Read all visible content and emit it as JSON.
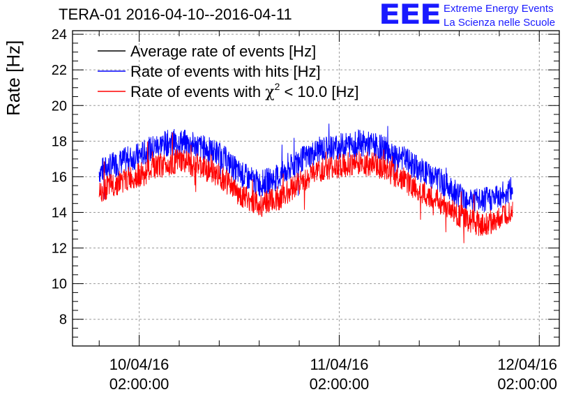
{
  "chart_data": {
    "type": "line",
    "title": "TERA-01 2016-04-10--2016-04-11",
    "ylabel": "Rate [Hz]",
    "xlabel": "",
    "ylim": [
      6.5,
      24.2
    ],
    "xlim_hours": [
      -20,
      126
    ],
    "yticks": [
      8,
      10,
      12,
      14,
      16,
      18,
      20,
      22,
      24
    ],
    "xticks": [
      {
        "hour": 0,
        "date": "10/04/16",
        "time": "02:00:00"
      },
      {
        "hour": 60,
        "date": "11/04/16",
        "time": "02:00:00"
      },
      {
        "hour": 120,
        "date": "12/04/16",
        "time": "02:00:00"
      }
    ],
    "grid": true,
    "legend_position": "top-left",
    "legend": [
      {
        "label": "Average rate of events [Hz]",
        "color": "#000000"
      },
      {
        "label": "Rate of events with hits [Hz]",
        "color": "#0000ff"
      },
      {
        "label_prefix": "Rate of events with ",
        "label_symbol": "χ",
        "label_sup": "2",
        "label_suffix": " < 10.0 [Hz]",
        "color": "#ff0000"
      }
    ],
    "series": [
      {
        "name": "Rate of events with hits [Hz]",
        "color": "#0000ff",
        "noise": 0.75,
        "points": [
          {
            "x": -12,
            "y": 16.3
          },
          {
            "x": -6,
            "y": 16.8
          },
          {
            "x": 0,
            "y": 17.2
          },
          {
            "x": 6,
            "y": 17.8
          },
          {
            "x": 12,
            "y": 18.0
          },
          {
            "x": 18,
            "y": 17.7
          },
          {
            "x": 24,
            "y": 17.3
          },
          {
            "x": 30,
            "y": 16.2
          },
          {
            "x": 36,
            "y": 15.6
          },
          {
            "x": 42,
            "y": 16.0
          },
          {
            "x": 48,
            "y": 16.9
          },
          {
            "x": 54,
            "y": 17.5
          },
          {
            "x": 60,
            "y": 17.7
          },
          {
            "x": 66,
            "y": 17.9
          },
          {
            "x": 72,
            "y": 17.7
          },
          {
            "x": 78,
            "y": 17.2
          },
          {
            "x": 84,
            "y": 16.4
          },
          {
            "x": 90,
            "y": 15.8
          },
          {
            "x": 96,
            "y": 15.0
          },
          {
            "x": 102,
            "y": 14.6
          },
          {
            "x": 108,
            "y": 14.9
          },
          {
            "x": 112,
            "y": 15.3
          }
        ]
      },
      {
        "name": "Rate of events with χ2 < 10.0 [Hz]",
        "color": "#ff0000",
        "noise": 0.7,
        "points": [
          {
            "x": -12,
            "y": 15.2
          },
          {
            "x": -6,
            "y": 15.7
          },
          {
            "x": 0,
            "y": 16.1
          },
          {
            "x": 6,
            "y": 16.6
          },
          {
            "x": 12,
            "y": 16.9
          },
          {
            "x": 18,
            "y": 16.6
          },
          {
            "x": 24,
            "y": 16.1
          },
          {
            "x": 30,
            "y": 15.0
          },
          {
            "x": 36,
            "y": 14.4
          },
          {
            "x": 42,
            "y": 14.8
          },
          {
            "x": 48,
            "y": 15.7
          },
          {
            "x": 54,
            "y": 16.3
          },
          {
            "x": 60,
            "y": 16.6
          },
          {
            "x": 66,
            "y": 16.8
          },
          {
            "x": 72,
            "y": 16.6
          },
          {
            "x": 78,
            "y": 16.0
          },
          {
            "x": 84,
            "y": 15.2
          },
          {
            "x": 90,
            "y": 14.6
          },
          {
            "x": 96,
            "y": 13.8
          },
          {
            "x": 102,
            "y": 13.3
          },
          {
            "x": 108,
            "y": 13.6
          },
          {
            "x": 112,
            "y": 14.2
          }
        ]
      }
    ]
  },
  "logo": {
    "text": "EEE",
    "line1": "Extreme Energy Events",
    "line2": "La Scienza nelle Scuole",
    "color": "#1a1aff"
  }
}
